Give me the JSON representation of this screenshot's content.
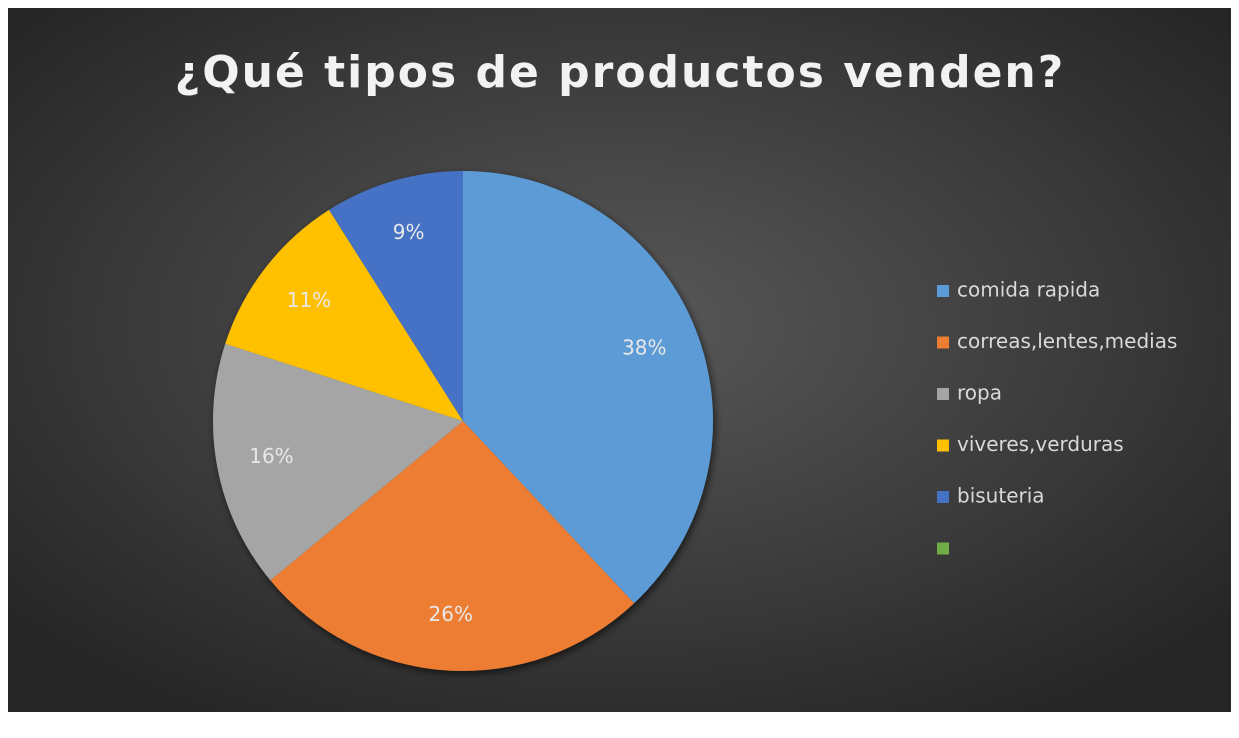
{
  "chart_data": {
    "type": "pie",
    "title": "¿Qué tipos de productos venden?",
    "categories": [
      "comida rapida",
      "correas,lentes,medias",
      "ropa",
      "viveres,verduras",
      "bisuteria",
      null
    ],
    "values": [
      38,
      26,
      16,
      11,
      9,
      0
    ],
    "value_labels": [
      "38%",
      "26%",
      "16%",
      "11%",
      "9%",
      null
    ],
    "colors": [
      "#5b9bd5",
      "#ed7d31",
      "#a5a5a5",
      "#ffc000",
      "#4472c4",
      "#70ad47"
    ],
    "legend": "right"
  }
}
